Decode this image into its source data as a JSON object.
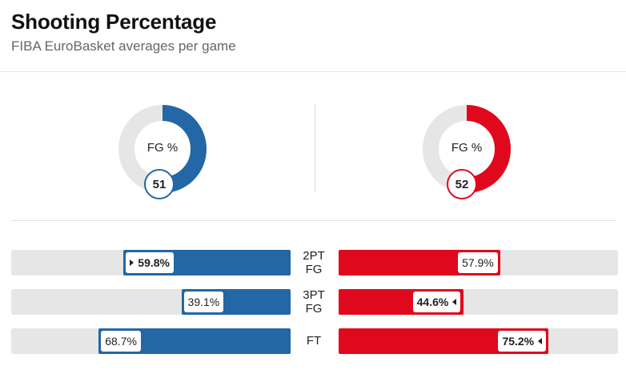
{
  "header": {
    "title": "Shooting Percentage",
    "subtitle": "FIBA EuroBasket averages per game"
  },
  "colors": {
    "team_a": "#2367a6",
    "team_b": "#e0081c",
    "track": "#e6e6e6"
  },
  "donuts": [
    {
      "label": "FG %",
      "value": "51",
      "percent": 51,
      "color": "#2367a6"
    },
    {
      "label": "FG %",
      "value": "52",
      "percent": 52,
      "color": "#e0081c"
    }
  ],
  "stats": [
    {
      "label_line1": "2PT",
      "label_line2": "FG",
      "a": "59.8%",
      "a_pct": 59.8,
      "b": "57.9%",
      "b_pct": 57.9,
      "leader": "a"
    },
    {
      "label_line1": "3PT",
      "label_line2": "FG",
      "a": "39.1%",
      "a_pct": 39.1,
      "b": "44.6%",
      "b_pct": 44.6,
      "leader": "b"
    },
    {
      "label_line1": "FT",
      "label_line2": "",
      "a": "68.7%",
      "a_pct": 68.7,
      "b": "75.2%",
      "b_pct": 75.2,
      "leader": "b"
    }
  ]
}
